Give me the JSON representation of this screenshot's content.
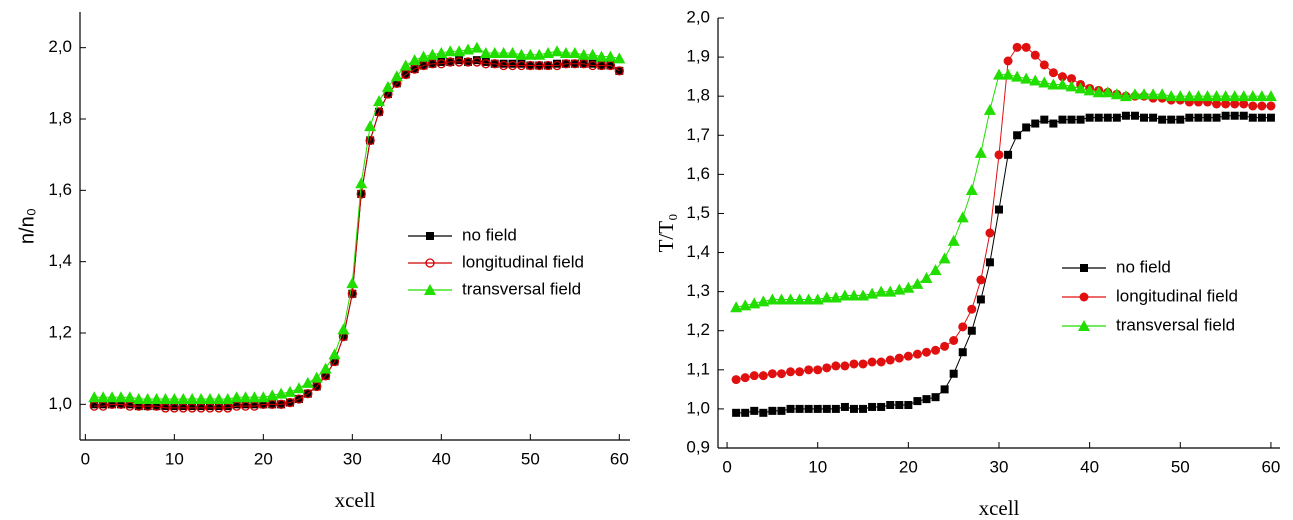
{
  "chart_data": [
    {
      "type": "line",
      "y_label": "n/n₀",
      "x_label": "xcell",
      "x": [
        1,
        2,
        3,
        4,
        5,
        6,
        7,
        8,
        9,
        10,
        11,
        12,
        13,
        14,
        15,
        16,
        17,
        18,
        19,
        20,
        21,
        22,
        23,
        24,
        25,
        26,
        27,
        28,
        29,
        30,
        31,
        32,
        33,
        34,
        35,
        36,
        37,
        38,
        39,
        40,
        41,
        42,
        43,
        44,
        45,
        46,
        47,
        48,
        49,
        50,
        51,
        52,
        53,
        54,
        55,
        56,
        57,
        58,
        59,
        60
      ],
      "xlim": [
        -0.6,
        61.2
      ],
      "xticks": [
        0,
        10,
        20,
        30,
        40,
        50,
        60
      ],
      "ylim": [
        0.9,
        2.1
      ],
      "yticks": [
        {
          "value": 1.0,
          "label": "1,0"
        },
        {
          "value": 1.2,
          "label": "1,2"
        },
        {
          "value": 1.4,
          "label": "1,4"
        },
        {
          "value": 1.6,
          "label": "1,6"
        },
        {
          "value": 1.8,
          "label": "1,8"
        },
        {
          "value": 2.0,
          "label": "2,0"
        }
      ],
      "series": [
        {
          "name": "no field",
          "color": "#000000",
          "marker": "square",
          "values": [
            1.0,
            1.0,
            1.0,
            1.0,
            1.0,
            0.995,
            0.995,
            0.995,
            0.995,
            0.995,
            0.995,
            0.995,
            0.995,
            0.995,
            0.995,
            0.995,
            1.0,
            1.0,
            1.0,
            1.0,
            1.0,
            1.0,
            1.005,
            1.015,
            1.03,
            1.05,
            1.08,
            1.12,
            1.19,
            1.31,
            1.59,
            1.74,
            1.82,
            1.87,
            1.9,
            1.925,
            1.94,
            1.95,
            1.955,
            1.96,
            1.96,
            1.965,
            1.96,
            1.965,
            1.96,
            1.955,
            1.955,
            1.955,
            1.955,
            1.95,
            1.95,
            1.95,
            1.955,
            1.955,
            1.955,
            1.955,
            1.955,
            1.95,
            1.95,
            1.935
          ]
        },
        {
          "name": "longitudinal field",
          "color": "#d00000",
          "marker": "open-circle",
          "values": [
            0.995,
            0.995,
            1.0,
            1.0,
            0.995,
            0.995,
            0.995,
            0.995,
            0.99,
            0.99,
            0.99,
            0.99,
            0.99,
            0.99,
            0.99,
            0.99,
            0.995,
            0.995,
            0.995,
            1.0,
            1.0,
            1.0,
            1.005,
            1.015,
            1.03,
            1.05,
            1.08,
            1.12,
            1.19,
            1.31,
            1.59,
            1.74,
            1.82,
            1.87,
            1.9,
            1.925,
            1.94,
            1.95,
            1.955,
            1.955,
            1.96,
            1.96,
            1.96,
            1.96,
            1.955,
            1.955,
            1.95,
            1.95,
            1.95,
            1.95,
            1.95,
            1.95,
            1.95,
            1.955,
            1.955,
            1.955,
            1.95,
            1.95,
            1.95,
            1.935
          ]
        },
        {
          "name": "transversal field",
          "color": "#22dd00",
          "marker": "triangle",
          "values": [
            1.02,
            1.02,
            1.02,
            1.02,
            1.02,
            1.015,
            1.015,
            1.015,
            1.015,
            1.015,
            1.015,
            1.015,
            1.015,
            1.015,
            1.015,
            1.015,
            1.02,
            1.02,
            1.02,
            1.02,
            1.025,
            1.03,
            1.035,
            1.045,
            1.06,
            1.075,
            1.1,
            1.14,
            1.21,
            1.34,
            1.62,
            1.78,
            1.85,
            1.89,
            1.92,
            1.95,
            1.965,
            1.975,
            1.98,
            1.985,
            1.99,
            1.99,
            1.995,
            2.0,
            1.985,
            1.985,
            1.985,
            1.985,
            1.98,
            1.98,
            1.98,
            1.985,
            1.99,
            1.985,
            1.985,
            1.98,
            1.98,
            1.975,
            1.975,
            1.97
          ]
        }
      ]
    },
    {
      "type": "line",
      "y_label": "T/T₀",
      "x_label": "xcell",
      "x": [
        1,
        2,
        3,
        4,
        5,
        6,
        7,
        8,
        9,
        10,
        11,
        12,
        13,
        14,
        15,
        16,
        17,
        18,
        19,
        20,
        21,
        22,
        23,
        24,
        25,
        26,
        27,
        28,
        29,
        30,
        31,
        32,
        33,
        34,
        35,
        36,
        37,
        38,
        39,
        40,
        41,
        42,
        43,
        44,
        45,
        46,
        47,
        48,
        49,
        50,
        51,
        52,
        53,
        54,
        55,
        56,
        57,
        58,
        59,
        60
      ],
      "xlim": [
        -1,
        61
      ],
      "xticks": [
        0,
        10,
        20,
        30,
        40,
        50,
        60
      ],
      "ylim": [
        0.9,
        2.0
      ],
      "yticks": [
        {
          "value": 0.9,
          "label": "0,9"
        },
        {
          "value": 1.0,
          "label": "1,0"
        },
        {
          "value": 1.1,
          "label": "1,1"
        },
        {
          "value": 1.2,
          "label": "1,2"
        },
        {
          "value": 1.3,
          "label": "1,3"
        },
        {
          "value": 1.4,
          "label": "1,4"
        },
        {
          "value": 1.5,
          "label": "1,5"
        },
        {
          "value": 1.6,
          "label": "1,6"
        },
        {
          "value": 1.7,
          "label": "1,7"
        },
        {
          "value": 1.8,
          "label": "1,8"
        },
        {
          "value": 1.9,
          "label": "1,9"
        },
        {
          "value": 2.0,
          "label": "2,0"
        }
      ],
      "series": [
        {
          "name": "no field",
          "color": "#000000",
          "marker": "square",
          "values": [
            0.99,
            0.99,
            0.995,
            0.99,
            0.995,
            0.995,
            1.0,
            1.0,
            1.0,
            1.0,
            1.0,
            1.0,
            1.005,
            1.0,
            1.0,
            1.005,
            1.005,
            1.01,
            1.01,
            1.01,
            1.02,
            1.025,
            1.03,
            1.05,
            1.09,
            1.145,
            1.2,
            1.28,
            1.375,
            1.51,
            1.65,
            1.7,
            1.72,
            1.73,
            1.74,
            1.73,
            1.74,
            1.74,
            1.74,
            1.745,
            1.745,
            1.745,
            1.745,
            1.75,
            1.75,
            1.745,
            1.745,
            1.74,
            1.74,
            1.74,
            1.745,
            1.745,
            1.745,
            1.745,
            1.75,
            1.75,
            1.75,
            1.745,
            1.745,
            1.745
          ]
        },
        {
          "name": "longitudinal field",
          "color": "#e01010",
          "marker": "circle",
          "values": [
            1.075,
            1.08,
            1.085,
            1.085,
            1.09,
            1.09,
            1.095,
            1.095,
            1.1,
            1.1,
            1.105,
            1.11,
            1.11,
            1.115,
            1.115,
            1.12,
            1.12,
            1.125,
            1.13,
            1.135,
            1.14,
            1.145,
            1.15,
            1.16,
            1.175,
            1.21,
            1.255,
            1.33,
            1.45,
            1.65,
            1.89,
            1.925,
            1.925,
            1.905,
            1.88,
            1.86,
            1.85,
            1.845,
            1.83,
            1.82,
            1.815,
            1.81,
            1.805,
            1.8,
            1.8,
            1.8,
            1.795,
            1.795,
            1.79,
            1.79,
            1.785,
            1.785,
            1.785,
            1.78,
            1.78,
            1.78,
            1.78,
            1.775,
            1.775,
            1.775
          ]
        },
        {
          "name": "transversal field",
          "color": "#22dd00",
          "marker": "triangle",
          "values": [
            1.26,
            1.265,
            1.27,
            1.275,
            1.28,
            1.28,
            1.28,
            1.28,
            1.28,
            1.28,
            1.285,
            1.285,
            1.29,
            1.29,
            1.29,
            1.295,
            1.3,
            1.3,
            1.305,
            1.31,
            1.32,
            1.335,
            1.355,
            1.385,
            1.43,
            1.49,
            1.56,
            1.655,
            1.765,
            1.855,
            1.855,
            1.85,
            1.845,
            1.84,
            1.835,
            1.83,
            1.83,
            1.825,
            1.82,
            1.815,
            1.81,
            1.81,
            1.805,
            1.8,
            1.805,
            1.805,
            1.805,
            1.805,
            1.8,
            1.8,
            1.8,
            1.8,
            1.8,
            1.8,
            1.8,
            1.8,
            1.8,
            1.8,
            1.8,
            1.8
          ]
        }
      ]
    }
  ]
}
